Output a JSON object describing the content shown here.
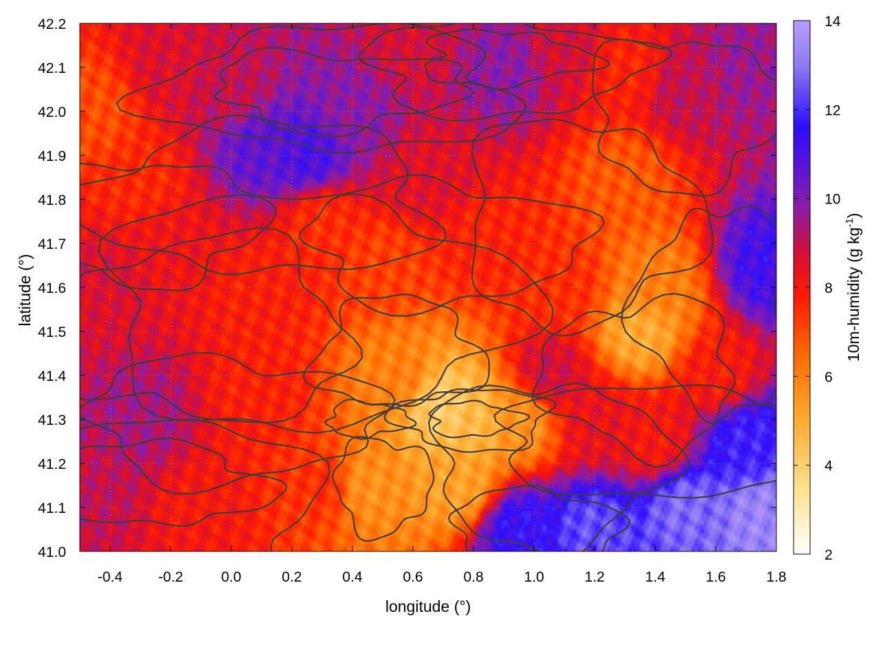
{
  "chart_data": {
    "type": "heatmap",
    "xlabel": "longitude (°)",
    "ylabel": "latitude (°)",
    "colorbar_label": "10m-humidity (g kg",
    "colorbar_label_sup": "-1",
    "colorbar_label_end": ")",
    "xlim": [
      -0.5,
      1.8
    ],
    "ylim": [
      41.0,
      42.2
    ],
    "clim": [
      2,
      14
    ],
    "x_ticks": [
      "-0.4",
      "-0.2",
      "0.0",
      "0.2",
      "0.4",
      "0.6",
      "0.8",
      "1.0",
      "1.2",
      "1.4",
      "1.6",
      "1.8"
    ],
    "x_tick_values": [
      -0.4,
      -0.2,
      0.0,
      0.2,
      0.4,
      0.6,
      0.8,
      1.0,
      1.2,
      1.4,
      1.6,
      1.8
    ],
    "y_ticks": [
      "41.0",
      "41.1",
      "41.2",
      "41.3",
      "41.4",
      "41.5",
      "41.6",
      "41.7",
      "41.8",
      "41.9",
      "42.0",
      "42.1",
      "42.2"
    ],
    "y_tick_values": [
      41.0,
      41.1,
      41.2,
      41.3,
      41.4,
      41.5,
      41.6,
      41.7,
      41.8,
      41.9,
      42.0,
      42.1,
      42.2
    ],
    "c_ticks": [
      "2",
      "4",
      "6",
      "8",
      "10",
      "12",
      "14"
    ],
    "c_tick_values": [
      2,
      4,
      6,
      8,
      10,
      12,
      14
    ],
    "colormap": [
      "#ffffff",
      "#ffe08a",
      "#ffab2e",
      "#ff6a00",
      "#ff1a00",
      "#d1103a",
      "#8a1ea8",
      "#2b0dff",
      "#8f7cf2",
      "#b99cff"
    ],
    "colormap_stops": [
      2,
      3.5,
      5,
      6.5,
      7.8,
      8.8,
      9.8,
      11.6,
      13,
      14
    ],
    "grid": "dotted",
    "contours": "terrain elevation (dark gray lines)",
    "field_samples": [
      {
        "lon": -0.45,
        "lat": 42.0,
        "q": 7.0
      },
      {
        "lon": -0.3,
        "lat": 41.85,
        "q": 7.6
      },
      {
        "lon": -0.2,
        "lat": 42.1,
        "q": 8.6
      },
      {
        "lon": 0.0,
        "lat": 42.05,
        "q": 9.0
      },
      {
        "lon": 0.1,
        "lat": 41.92,
        "q": 10.6
      },
      {
        "lon": 0.25,
        "lat": 41.9,
        "q": 11.0
      },
      {
        "lon": 0.4,
        "lat": 42.0,
        "q": 9.8
      },
      {
        "lon": 0.6,
        "lat": 42.15,
        "q": 8.7
      },
      {
        "lon": 0.9,
        "lat": 42.1,
        "q": 9.8
      },
      {
        "lon": 1.1,
        "lat": 42.15,
        "q": 8.7
      },
      {
        "lon": 1.3,
        "lat": 42.1,
        "q": 7.7
      },
      {
        "lon": 1.5,
        "lat": 42.05,
        "q": 9.0
      },
      {
        "lon": 1.7,
        "lat": 42.1,
        "q": 9.6
      },
      {
        "lon": 1.78,
        "lat": 41.65,
        "q": 11.2
      },
      {
        "lon": 1.3,
        "lat": 41.85,
        "q": 6.8
      },
      {
        "lon": 1.35,
        "lat": 41.5,
        "q": 5.0
      },
      {
        "lon": 1.4,
        "lat": 41.6,
        "q": 6.0
      },
      {
        "lon": 1.1,
        "lat": 41.6,
        "q": 7.5
      },
      {
        "lon": 0.85,
        "lat": 41.7,
        "q": 7.7
      },
      {
        "lon": 0.65,
        "lat": 41.85,
        "q": 8.5
      },
      {
        "lon": 0.5,
        "lat": 41.65,
        "q": 7.2
      },
      {
        "lon": 0.3,
        "lat": 41.75,
        "q": 7.5
      },
      {
        "lon": 0.1,
        "lat": 41.6,
        "q": 7.8
      },
      {
        "lon": -0.2,
        "lat": 41.7,
        "q": 8.2
      },
      {
        "lon": -0.42,
        "lat": 41.6,
        "q": 8.6
      },
      {
        "lon": -0.3,
        "lat": 41.3,
        "q": 9.4
      },
      {
        "lon": -0.45,
        "lat": 41.15,
        "q": 9.0
      },
      {
        "lon": -0.1,
        "lat": 41.1,
        "q": 8.0
      },
      {
        "lon": 0.1,
        "lat": 41.35,
        "q": 7.8
      },
      {
        "lon": 0.3,
        "lat": 41.15,
        "q": 7.5
      },
      {
        "lon": 0.45,
        "lat": 41.15,
        "q": 5.6
      },
      {
        "lon": 0.55,
        "lat": 41.4,
        "q": 6.0
      },
      {
        "lon": 0.7,
        "lat": 41.33,
        "q": 4.0
      },
      {
        "lon": 0.8,
        "lat": 41.3,
        "q": 4.6
      },
      {
        "lon": 0.75,
        "lat": 41.15,
        "q": 5.2
      },
      {
        "lon": 0.95,
        "lat": 41.3,
        "q": 5.5
      },
      {
        "lon": 1.05,
        "lat": 41.4,
        "q": 8.8
      },
      {
        "lon": 1.2,
        "lat": 41.3,
        "q": 8.3
      },
      {
        "lon": 1.4,
        "lat": 41.25,
        "q": 8.0
      },
      {
        "lon": 1.6,
        "lat": 41.4,
        "q": 7.9
      },
      {
        "lon": 0.95,
        "lat": 41.05,
        "q": 11.5
      },
      {
        "lon": 1.2,
        "lat": 41.05,
        "q": 12.4
      },
      {
        "lon": 1.5,
        "lat": 41.1,
        "q": 12.8
      },
      {
        "lon": 1.75,
        "lat": 41.08,
        "q": 13.3
      },
      {
        "lon": 1.7,
        "lat": 41.25,
        "q": 11.8
      }
    ]
  }
}
